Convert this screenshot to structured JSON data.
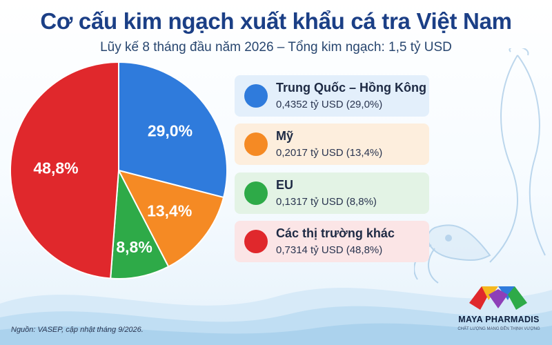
{
  "title": "Cơ cấu kim ngạch xuất khẩu cá tra Việt Nam",
  "subtitle": "Lũy kế 8 tháng đầu năm 2026 – Tổng kim ngạch: 1,5 tỷ USD",
  "chart_data": {
    "type": "pie",
    "slices": [
      {
        "name": "Trung Quốc – Hồng Kông",
        "value": 29.0,
        "label": "29,0%",
        "amount": "0,4352 tỷ USD (29,0%)",
        "color": "#2f7bdc"
      },
      {
        "name": "Mỹ",
        "value": 13.4,
        "label": "13,4%",
        "amount": "0,2017 tỷ USD (13,4%)",
        "color": "#f58a24"
      },
      {
        "name": "EU",
        "value": 8.8,
        "label": "8,8%",
        "amount": "0,1317 tỷ USD (8,8%)",
        "color": "#2eaa48"
      },
      {
        "name": "Các thị trường khác",
        "value": 48.8,
        "label": "48,8%",
        "amount": "0,7314 tỷ USD (48,8%)",
        "color": "#e0282c"
      }
    ],
    "legend_position": "right",
    "legend_box_colors": [
      "#e3effb",
      "#fdeedd",
      "#e3f3e5",
      "#fbe5e6"
    ]
  },
  "source": "Nguồn: VASEP, cập nhật tháng 9/2026.",
  "brand": {
    "name": "MAYA PHARMADIS",
    "tagline": "CHẤT LƯỢNG MANG ĐẾN THỊNH VƯỢNG",
    "logo_colors": [
      "#e0282c",
      "#f5b81f",
      "#2f7bdc",
      "#2eaa48",
      "#8e3fb8"
    ]
  },
  "decoration": [
    "fish-illustration",
    "water-waves"
  ]
}
